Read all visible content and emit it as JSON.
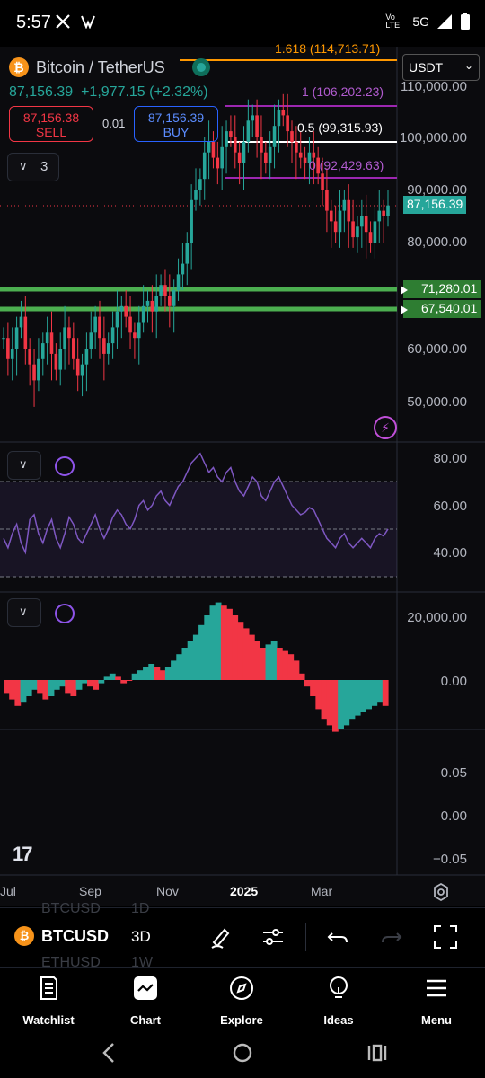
{
  "status_bar": {
    "time": "5:57",
    "network": "5G",
    "volte": "Vo LTE"
  },
  "header": {
    "symbol_name": "Bitcoin / TetherUS",
    "last_price": "87,156.39",
    "change": "+1,977.15 (+2.32%)",
    "currency": "USDT",
    "sell_price": "87,156.38",
    "sell_label": "SELL",
    "buy_price": "87,156.39",
    "buy_label": "BUY",
    "spread": "0.01",
    "indicator_count": "3"
  },
  "fib_levels": {
    "l1618": "1.618 (114,713.71)",
    "l1": "1 (106,202.23)",
    "l05": "0.5 (99,315.93)",
    "l0": "0 (92,429.63)"
  },
  "price_axis": [
    "110,000.00",
    "100,000.00",
    "90,000.00",
    "80,000.00",
    "60,000.00",
    "50,000.00"
  ],
  "price_tags": {
    "current": "87,156.39",
    "support1": "71,280.01",
    "support2": "67,540.01"
  },
  "rsi_axis": [
    "80.00",
    "60.00",
    "40.00"
  ],
  "osc_axis": [
    "20,000.00",
    "0.00"
  ],
  "pane4_axis": [
    "0.05",
    "0.00",
    "−0.05"
  ],
  "time_axis": [
    "Jul",
    "Sep",
    "Nov",
    "2025",
    "Mar"
  ],
  "toolbar": {
    "symbol": "BTCUSD",
    "symbol_prev": "BTCUSD",
    "symbol_next": "ETHUSD",
    "interval": "3D",
    "interval_prev": "1D",
    "interval_next": "1W"
  },
  "nav": {
    "watchlist": "Watchlist",
    "chart": "Chart",
    "explore": "Explore",
    "ideas": "Ideas",
    "menu": "Menu"
  },
  "colors": {
    "up": "#26a69a",
    "down": "#f23645",
    "support": "#4caf50",
    "fib": "#9c27b0",
    "rsi": "#7e57c2",
    "fib_1618": "#ff9800"
  }
}
